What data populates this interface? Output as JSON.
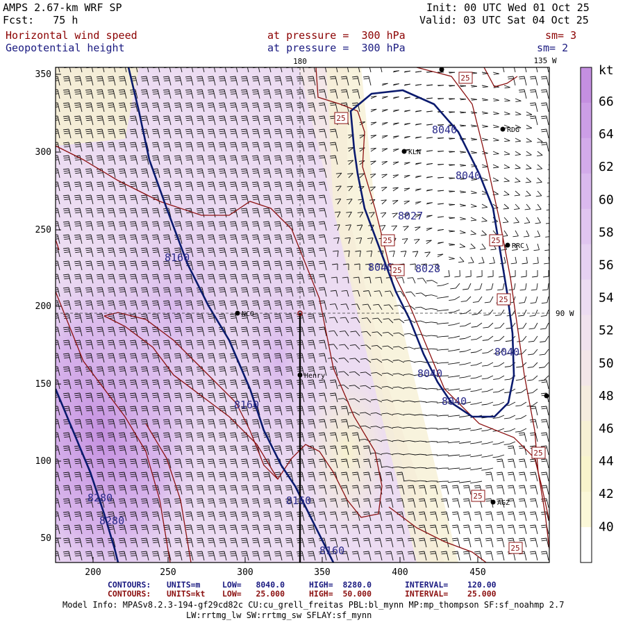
{
  "header": {
    "model": "AMPS 2.67-km WRF SP",
    "fcst": "Fcst:   75 h",
    "init": "Init: 00 UTC Wed 01 Oct 25",
    "valid": "Valid: 03 UTC Sat 04 Oct 25",
    "field1": "Horizontal wind speed",
    "field2": "Geopotential height",
    "level1": "at pressure =  300 hPa",
    "level2": "at pressure =  300 hPa",
    "sm1": "sm= 3",
    "sm2": "sm= 2"
  },
  "map": {
    "lon_label_180": "180",
    "lon_label_135": "135 W",
    "lon_label_90": "90 W",
    "x_ticks": [
      "200",
      "250",
      "300",
      "350",
      "400",
      "450"
    ],
    "y_ticks": [
      "350",
      "300",
      "250",
      "200",
      "150",
      "100",
      "50"
    ],
    "stations": [
      "NCO",
      "Henry",
      "KLN",
      "RDG",
      "RRC",
      "AGZ"
    ],
    "height_labels": [
      "8040",
      "8040",
      "8027",
      "8040",
      "8028",
      "8040",
      "8040",
      "8040",
      "8160",
      "8160",
      "8160",
      "8160",
      "8280",
      "8280"
    ],
    "speed_labels": [
      "25",
      "25",
      "25",
      "25",
      "25",
      "25",
      "25",
      "25"
    ]
  },
  "colorbar": {
    "unit": "kt",
    "labels": [
      "66",
      "64",
      "62",
      "60",
      "58",
      "56",
      "54",
      "52",
      "50",
      "48",
      "46",
      "44",
      "42",
      "40"
    ],
    "colors": [
      "#c48fe0",
      "#cc9ee6",
      "#d3abea",
      "#dab9ee",
      "#e0c5f0",
      "#e6d1f2",
      "#ecdcf2",
      "#f0e2ee",
      "#f3e6e8",
      "#f5ecde",
      "#f6f0d4",
      "#f8f4cc",
      "#fbf8d8",
      "#ffffff"
    ]
  },
  "footer": {
    "c1_label": "CONTOURS:",
    "c1_units": "UNITS=m",
    "c1_low": "LOW=   8040.0",
    "c1_high": "HIGH=  8280.0",
    "c1_int": "INTERVAL=    120.00",
    "c2_label": "CONTOURS:",
    "c2_units": "UNITS=kt",
    "c2_low": "LOW=   25.000",
    "c2_high": "HIGH=  50.000",
    "c2_int": "INTERVAL=    25.000",
    "info1": "Model Info: MPASv8.2.3-194-gf29cd82c CU:cu_grell_freitas PBL:bl_mynn MP:mp_thompson SF:sf_noahmp 2.7",
    "info2": "LW:rrtmg_lw SW:rrtmg_sw SFLAY:sf_mynn"
  },
  "colors": {
    "height_contour": "#0a1a6e",
    "speed_contour": "#8b1010",
    "barb": "#111111"
  }
}
